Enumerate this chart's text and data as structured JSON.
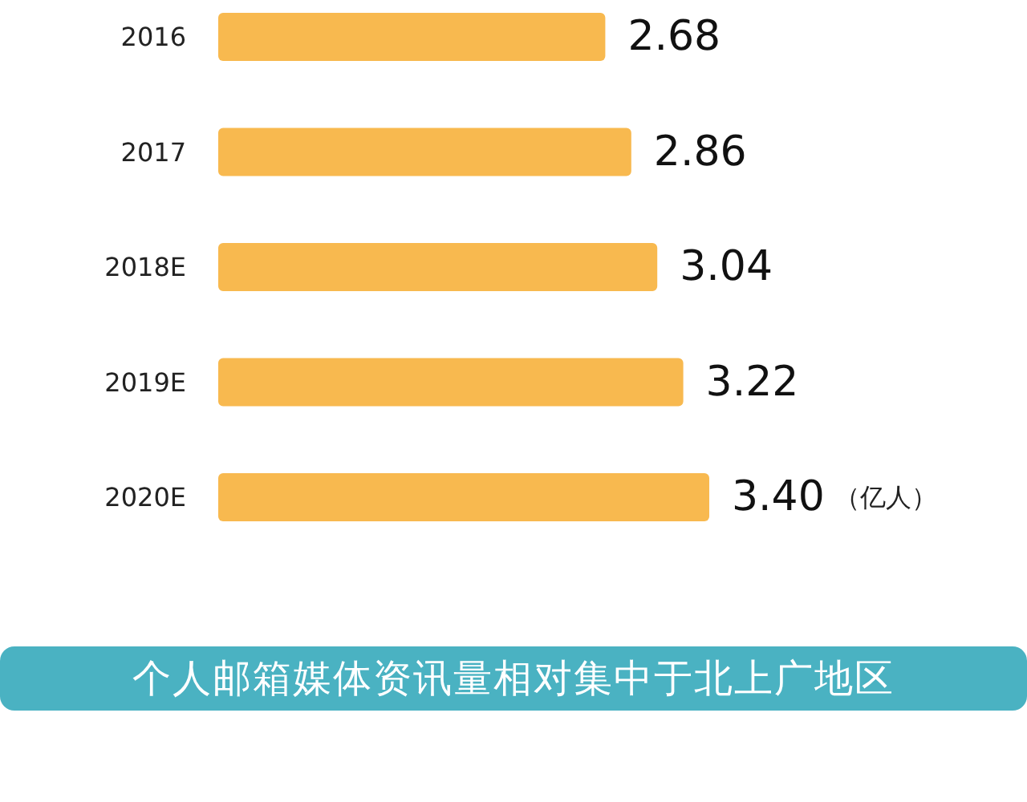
{
  "chart_data": {
    "type": "bar",
    "orientation": "horizontal",
    "categories": [
      "2016",
      "2017",
      "2018E",
      "2019E",
      "2020E"
    ],
    "values": [
      2.68,
      2.86,
      3.04,
      3.22,
      3.4
    ],
    "value_labels": [
      "2.68",
      "2.86",
      "3.04",
      "3.22",
      "3.40"
    ],
    "color": "#f8b94f",
    "tick_labels": "y",
    "annotations": [
      "（亿人）",
      "个人邮箱媒体资讯量相对集中于北上广地区"
    ]
  }
}
